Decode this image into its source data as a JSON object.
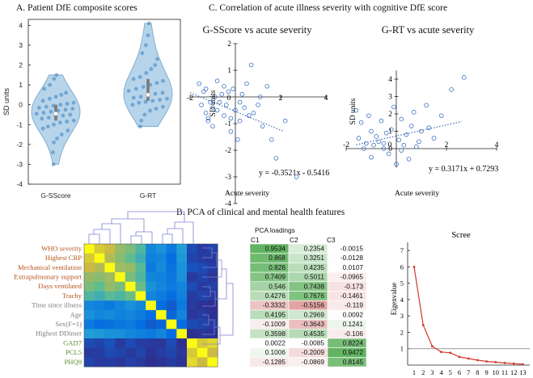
{
  "titles": {
    "a": "A. Patient DfE composite scores",
    "c": "C. Correlation of acute illness severity with cognitive DfE score",
    "b": "B. PCA of clinical and mental health features"
  },
  "colors": {
    "violin_fill": "#a9cce6",
    "violin_edge": "#6fa3cc",
    "point": "#3a7fc0",
    "scatter": "#3a6fc0",
    "fit_line": "#2f5fb0",
    "scree_line": "#d03a2a",
    "clinical_label": "#b5531a",
    "other_label": "#7a7a7a",
    "mental_label": "#5a8f2a"
  },
  "chart_data": [
    {
      "type": "violin",
      "title": "A. Patient DfE composite scores",
      "ylabel": "SD units",
      "ylim": [
        -4,
        4.3
      ],
      "yticks": [
        "-4",
        "-3",
        "-2",
        "-1",
        "0",
        "1",
        "2",
        "3",
        "4"
      ],
      "categories": [
        "G-SScore",
        "G-RT"
      ],
      "series": [
        {
          "name": "G-SScore",
          "median": -0.45,
          "q1": -0.8,
          "q3": 0.0,
          "min": -3.0,
          "max": 1.5,
          "points": [
            -3.0,
            -2.4,
            -1.9,
            -1.7,
            -1.5,
            -1.3,
            -1.2,
            -1.1,
            -1.0,
            -0.9,
            -0.85,
            -0.8,
            -0.7,
            -0.65,
            -0.6,
            -0.55,
            -0.5,
            -0.45,
            -0.4,
            -0.35,
            -0.3,
            -0.25,
            -0.2,
            -0.15,
            -0.1,
            -0.05,
            0.0,
            0.05,
            0.1,
            0.2,
            0.3,
            0.4,
            0.5,
            0.6,
            0.8,
            1.0,
            1.3,
            1.5
          ]
        },
        {
          "name": "G-RT",
          "median": 0.5,
          "q1": 0.2,
          "q3": 1.3,
          "min": -1.1,
          "max": 4.1,
          "points": [
            -1.1,
            -0.8,
            -0.5,
            -0.3,
            -0.2,
            -0.1,
            0.0,
            0.1,
            0.15,
            0.2,
            0.25,
            0.3,
            0.35,
            0.4,
            0.5,
            0.55,
            0.6,
            0.7,
            0.8,
            0.9,
            1.0,
            1.1,
            1.2,
            1.3,
            1.4,
            1.6,
            1.8,
            2.0,
            2.3,
            2.6,
            3.0,
            3.5,
            4.1
          ]
        }
      ]
    },
    {
      "type": "scatter",
      "title": "G-SScore vs acute severity",
      "xlabel": "Acute severity",
      "ylabel": "SD units",
      "xlim": [
        -2,
        4
      ],
      "ylim": [
        -4,
        2
      ],
      "xticks": [
        "-2",
        "0",
        "2",
        "4"
      ],
      "yticks": [
        "-4",
        "-3",
        "-2",
        "-1",
        "0",
        "1",
        "2"
      ],
      "equation": "y = -0.3521x - 0.5416",
      "slope": -0.3521,
      "intercept": -0.5416,
      "x": [
        -1.6,
        -1.5,
        -1.4,
        -1.3,
        -1.3,
        -1.2,
        -1.1,
        -1.0,
        -1.0,
        -0.9,
        -0.8,
        -0.8,
        -0.7,
        -0.6,
        -0.5,
        -0.5,
        -0.4,
        -0.3,
        -0.2,
        -0.2,
        -0.1,
        0.0,
        0.1,
        0.2,
        0.3,
        0.4,
        0.5,
        0.6,
        0.7,
        0.8,
        1.0,
        1.2,
        1.4,
        1.6,
        1.8,
        2.2,
        2.7,
        -1.2,
        0.2,
        1.1
      ],
      "y": [
        0.5,
        -0.3,
        0.2,
        -0.6,
        0.3,
        -0.9,
        -0.2,
        -0.4,
        -1.1,
        0.0,
        -0.5,
        0.6,
        -0.2,
        0.1,
        -0.7,
        0.4,
        -0.3,
        0.2,
        -0.8,
        -1.3,
        0.3,
        -0.5,
        -1.6,
        -0.9,
        0.1,
        -0.4,
        0.5,
        -0.7,
        1.2,
        -0.6,
        -0.3,
        -1.1,
        0.4,
        -1.6,
        -2.3,
        -0.9,
        -3.0,
        -0.8,
        -0.2,
        0.0
      ]
    },
    {
      "type": "scatter",
      "title": "G-RT vs acute severity",
      "xlabel": "Acute severity",
      "ylabel": "SD units",
      "xlim": [
        -2,
        4
      ],
      "ylim": [
        -1.1,
        4.5
      ],
      "xticks": [
        "-2",
        "0",
        "2",
        "4"
      ],
      "yticks": [
        "0",
        "1",
        "2",
        "3",
        "4"
      ],
      "equation": "y = 0.3171x + 0.7293",
      "slope": 0.3171,
      "intercept": 0.7293,
      "x": [
        -1.6,
        -1.5,
        -1.4,
        -1.3,
        -1.2,
        -1.1,
        -1.0,
        -1.0,
        -0.9,
        -0.8,
        -0.7,
        -0.6,
        -0.5,
        -0.4,
        -0.3,
        -0.2,
        -0.1,
        0.0,
        0.1,
        0.2,
        0.3,
        0.4,
        0.5,
        0.6,
        0.7,
        0.8,
        1.0,
        1.2,
        1.5,
        1.8,
        2.2,
        2.7,
        -0.5,
        0.2,
        0.9,
        1.3
      ],
      "y": [
        2.2,
        0.6,
        1.5,
        0.0,
        0.3,
        1.9,
        -0.5,
        1.0,
        0.2,
        0.7,
        0.4,
        1.6,
        0.0,
        0.9,
        -0.3,
        1.1,
        2.4,
        -0.9,
        0.5,
        1.7,
        0.2,
        0.8,
        -0.6,
        1.3,
        2.1,
        0.1,
        1.0,
        2.5,
        0.6,
        1.9,
        3.4,
        4.1,
        0.3,
        -0.1,
        0.4,
        1.2
      ]
    },
    {
      "type": "heatmap",
      "title": "B. PCA of clinical and mental health features",
      "rows": [
        "WHO severity",
        "Highest CRP",
        "Mechanical ventilation",
        "Extrapulmonary support",
        "Days ventilated",
        "Trachy",
        "Time since illness",
        "Age",
        "Sex(F=1)",
        "Highest DDimer",
        "GAD7",
        "PCL5",
        "PHQ9"
      ],
      "row_groups": [
        "clinical",
        "clinical",
        "clinical",
        "clinical",
        "clinical",
        "clinical",
        "other",
        "other",
        "other",
        "other",
        "mental",
        "mental",
        "mental"
      ],
      "values": [
        [
          1.0,
          0.85,
          0.8,
          0.7,
          0.65,
          0.55,
          0.3,
          0.35,
          0.25,
          0.4,
          0.1,
          0.05,
          0.08
        ],
        [
          0.85,
          1.0,
          0.75,
          0.68,
          0.6,
          0.5,
          0.28,
          0.3,
          0.2,
          0.38,
          0.08,
          0.06,
          0.05
        ],
        [
          0.8,
          0.75,
          1.0,
          0.72,
          0.7,
          0.58,
          0.25,
          0.32,
          0.22,
          0.35,
          0.12,
          0.1,
          0.06
        ],
        [
          0.7,
          0.68,
          0.72,
          1.0,
          0.65,
          0.55,
          0.3,
          0.28,
          0.24,
          0.34,
          0.05,
          0.08,
          0.04
        ],
        [
          0.65,
          0.6,
          0.7,
          0.65,
          1.0,
          0.62,
          0.35,
          0.3,
          0.25,
          0.3,
          0.1,
          0.05,
          0.07
        ],
        [
          0.55,
          0.5,
          0.58,
          0.55,
          0.62,
          1.0,
          0.3,
          0.26,
          0.2,
          0.28,
          0.06,
          0.08,
          0.05
        ],
        [
          0.3,
          0.28,
          0.25,
          0.3,
          0.35,
          0.3,
          1.0,
          0.2,
          0.15,
          0.25,
          0.05,
          0.03,
          0.02
        ],
        [
          0.35,
          0.3,
          0.32,
          0.28,
          0.3,
          0.26,
          0.2,
          1.0,
          0.18,
          0.3,
          0.04,
          0.06,
          0.03
        ],
        [
          0.25,
          0.2,
          0.22,
          0.24,
          0.25,
          0.2,
          0.15,
          0.18,
          1.0,
          0.2,
          0.1,
          0.08,
          0.06
        ],
        [
          0.4,
          0.38,
          0.35,
          0.34,
          0.3,
          0.28,
          0.25,
          0.3,
          0.2,
          1.0,
          0.02,
          0.04,
          0.03
        ],
        [
          0.1,
          0.08,
          0.12,
          0.05,
          0.1,
          0.06,
          0.05,
          0.04,
          0.1,
          0.02,
          1.0,
          0.85,
          0.9
        ],
        [
          0.05,
          0.06,
          0.1,
          0.08,
          0.05,
          0.08,
          0.03,
          0.06,
          0.08,
          0.04,
          0.85,
          1.0,
          0.8
        ],
        [
          0.08,
          0.05,
          0.06,
          0.04,
          0.07,
          0.05,
          0.02,
          0.03,
          0.06,
          0.03,
          0.9,
          0.8,
          1.0
        ]
      ]
    },
    {
      "type": "table",
      "title": "PCA loadings",
      "columns": [
        "C1",
        "C2",
        "C3"
      ],
      "rows": [
        [
          "0.9534",
          "0.2354",
          "-0.0015"
        ],
        [
          "0.868",
          "0.3251",
          "-0.0128"
        ],
        [
          "0.826",
          "0.4235",
          "0.0107"
        ],
        [
          "0.7409",
          "0.5011",
          "-0.0965"
        ],
        [
          "0.546",
          "0.7438",
          "-0.173"
        ],
        [
          "0.4276",
          "0.7676",
          "-0.1461"
        ],
        [
          "-0.3332",
          "-0.5156",
          "-0.119"
        ],
        [
          "0.4195",
          "0.2969",
          "0.0092"
        ],
        [
          "-0.1009",
          "-0.3643",
          "0.1241"
        ],
        [
          "0.3598",
          "0.4535",
          "-0.106"
        ],
        [
          "0.0022",
          "-0.0085",
          "0.8224"
        ],
        [
          "0.1006",
          "-0.2009",
          "0.9472"
        ],
        [
          "-0.1285",
          "-0.0869",
          "0.8145"
        ]
      ]
    },
    {
      "type": "line",
      "title": "Scree",
      "ylabel": "Eigenvalue",
      "x": [
        1,
        2,
        3,
        4,
        5,
        6,
        7,
        8,
        9,
        10,
        11,
        12,
        13
      ],
      "values": [
        6.0,
        2.45,
        1.15,
        0.8,
        0.75,
        0.5,
        0.4,
        0.3,
        0.22,
        0.18,
        0.13,
        0.09,
        0.05
      ],
      "reference_line": 1,
      "ylim": [
        0,
        7.5
      ],
      "xticks": [
        "1",
        "2",
        "3",
        "4",
        "5",
        "6",
        "7",
        "8",
        "9",
        "10",
        "11",
        "12",
        "13"
      ],
      "yticks": [
        "1",
        "2",
        "3",
        "4",
        "5",
        "6",
        "7"
      ]
    }
  ]
}
